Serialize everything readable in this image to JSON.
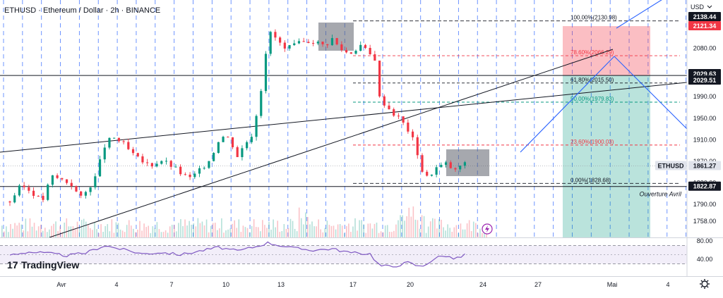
{
  "chart_data": {
    "type": "candlestick",
    "title": "ETHUSD · Ethereum / Dollar · 2h · BINANCE",
    "currency_label": "USD",
    "price_range": [
      1735,
      2150
    ],
    "price_ticks": [
      {
        "value": 2080.0,
        "label": "2080.00"
      },
      {
        "value": 1990.0,
        "label": "1990.00"
      },
      {
        "value": 1950.0,
        "label": "1950.00"
      },
      {
        "value": 1910.0,
        "label": "1910.00"
      },
      {
        "value": 1870.0,
        "label": "1870.00"
      },
      {
        "value": 1830.0,
        "label": "1830.00"
      },
      {
        "value": 1790.0,
        "label": "1790.00"
      },
      {
        "value": 1758.0,
        "label": "1758.00"
      }
    ],
    "price_tags": [
      {
        "value": 2138.44,
        "label": "2138.44",
        "bg": "#131722",
        "fg": "#ffffff"
      },
      {
        "value": 2121.34,
        "label": "2121.34",
        "bg": "#f23645",
        "fg": "#ffffff"
      },
      {
        "value": 2029.63,
        "label": "2029.63",
        "bg": "#131722",
        "fg": "#ffffff"
      },
      {
        "value": 2029.51,
        "label": "2029.51",
        "bg": "#131722",
        "fg": "#ffffff"
      },
      {
        "value": 1861.27,
        "label": "1861.27",
        "bg": "#e0e3eb",
        "fg": "#131722",
        "name": "ETHUSD"
      },
      {
        "value": 1822.87,
        "label": "1822.87",
        "bg": "#131722",
        "fg": "#ffffff"
      }
    ],
    "x_ticks": [
      {
        "day": 1,
        "label": "Avr"
      },
      {
        "day": 4,
        "label": "4"
      },
      {
        "day": 7,
        "label": "7"
      },
      {
        "day": 10,
        "label": "10"
      },
      {
        "day": 13,
        "label": "13"
      },
      {
        "day": 17,
        "label": "17"
      },
      {
        "day": 20,
        "label": "20"
      },
      {
        "day": 24,
        "label": "24"
      },
      {
        "day": 27,
        "label": "27"
      },
      {
        "day": 31,
        "label": "Mai"
      },
      {
        "day": 34,
        "label": "4"
      }
    ],
    "fib_levels": [
      {
        "ratio": "100.00%",
        "value": 2130.98,
        "label": "100.00%(2130.98)",
        "color": "#131722"
      },
      {
        "ratio": "78.60%",
        "value": 2066.29,
        "label": "78.60%(2066.29)",
        "color": "#f23645"
      },
      {
        "ratio": "61.80%",
        "value": 2015.5,
        "label": "61.80%(2015.50)",
        "color": "#131722"
      },
      {
        "ratio": "50.00%",
        "value": 1979.83,
        "label": "50.00%(1979.83)",
        "color": "#089981"
      },
      {
        "ratio": "23.60%",
        "value": 1900.03,
        "label": "23.60%(1900.03)",
        "color": "#f23645"
      },
      {
        "ratio": "0.00%",
        "value": 1828.68,
        "label": "0.00%(1828.68)",
        "color": "#131722"
      }
    ],
    "annotation": "Ouverture Avril",
    "ohlc_path": [
      {
        "day": 0.0,
        "price": 1795
      },
      {
        "day": 0.6,
        "price": 1825
      },
      {
        "day": 1.2,
        "price": 1812
      },
      {
        "day": 1.7,
        "price": 1795
      },
      {
        "day": 2.2,
        "price": 1842
      },
      {
        "day": 2.8,
        "price": 1835
      },
      {
        "day": 3.3,
        "price": 1826
      },
      {
        "day": 3.7,
        "price": 1800
      },
      {
        "day": 4.0,
        "price": 1812
      },
      {
        "day": 4.5,
        "price": 1840
      },
      {
        "day": 5.0,
        "price": 1898
      },
      {
        "day": 5.4,
        "price": 1915
      },
      {
        "day": 5.9,
        "price": 1905
      },
      {
        "day": 6.4,
        "price": 1885
      },
      {
        "day": 6.9,
        "price": 1870
      },
      {
        "day": 7.4,
        "price": 1862
      },
      {
        "day": 8.0,
        "price": 1872
      },
      {
        "day": 8.6,
        "price": 1860
      },
      {
        "day": 9.1,
        "price": 1845
      },
      {
        "day": 9.5,
        "price": 1838
      },
      {
        "day": 10.0,
        "price": 1852
      },
      {
        "day": 10.6,
        "price": 1876
      },
      {
        "day": 11.1,
        "price": 1918
      },
      {
        "day": 11.6,
        "price": 1912
      },
      {
        "day": 12.0,
        "price": 1880
      },
      {
        "day": 12.4,
        "price": 1902
      },
      {
        "day": 12.8,
        "price": 1922
      },
      {
        "day": 13.1,
        "price": 1975
      },
      {
        "day": 13.4,
        "price": 2035
      },
      {
        "day": 13.6,
        "price": 2112
      },
      {
        "day": 14.0,
        "price": 2100
      },
      {
        "day": 14.5,
        "price": 2078
      },
      {
        "day": 15.2,
        "price": 2088
      },
      {
        "day": 15.9,
        "price": 2095
      },
      {
        "day": 16.6,
        "price": 2085
      },
      {
        "day": 17.0,
        "price": 2098
      },
      {
        "day": 17.4,
        "price": 2080
      },
      {
        "day": 17.9,
        "price": 2070
      },
      {
        "day": 18.5,
        "price": 2086
      },
      {
        "day": 19.0,
        "price": 2068
      },
      {
        "day": 19.3,
        "price": 2060
      },
      {
        "day": 19.5,
        "price": 1988
      },
      {
        "day": 19.9,
        "price": 1972
      },
      {
        "day": 20.2,
        "price": 1960
      },
      {
        "day": 20.6,
        "price": 1948
      },
      {
        "day": 21.0,
        "price": 1928
      },
      {
        "day": 21.4,
        "price": 1900
      },
      {
        "day": 21.7,
        "price": 1855
      },
      {
        "day": 22.0,
        "price": 1840
      },
      {
        "day": 22.5,
        "price": 1858
      },
      {
        "day": 23.0,
        "price": 1865
      },
      {
        "day": 23.5,
        "price": 1852
      },
      {
        "day": 23.9,
        "price": 1868
      },
      {
        "day": 24.1,
        "price": 1861
      }
    ],
    "rsi": {
      "ticks": [
        {
          "value": 80,
          "label": "80.00"
        },
        {
          "value": 40,
          "label": "40.00"
        }
      ],
      "bands": [
        70,
        30
      ],
      "path": [
        {
          "day": 0.0,
          "value": 50
        },
        {
          "day": 1.0,
          "value": 56
        },
        {
          "day": 2.0,
          "value": 53
        },
        {
          "day": 3.0,
          "value": 48
        },
        {
          "day": 4.0,
          "value": 54
        },
        {
          "day": 5.0,
          "value": 70
        },
        {
          "day": 6.0,
          "value": 61
        },
        {
          "day": 7.0,
          "value": 52
        },
        {
          "day": 8.0,
          "value": 55
        },
        {
          "day": 9.0,
          "value": 50
        },
        {
          "day": 10.0,
          "value": 58
        },
        {
          "day": 11.0,
          "value": 66
        },
        {
          "day": 12.0,
          "value": 58
        },
        {
          "day": 13.0,
          "value": 68
        },
        {
          "day": 13.6,
          "value": 76
        },
        {
          "day": 15.0,
          "value": 64
        },
        {
          "day": 16.0,
          "value": 60
        },
        {
          "day": 17.0,
          "value": 63
        },
        {
          "day": 18.0,
          "value": 54
        },
        {
          "day": 19.0,
          "value": 52
        },
        {
          "day": 19.5,
          "value": 26
        },
        {
          "day": 20.2,
          "value": 24
        },
        {
          "day": 21.0,
          "value": 33
        },
        {
          "day": 21.7,
          "value": 23
        },
        {
          "day": 22.5,
          "value": 44
        },
        {
          "day": 23.0,
          "value": 48
        },
        {
          "day": 23.5,
          "value": 40
        },
        {
          "day": 24.0,
          "value": 50
        }
      ]
    },
    "colors": {
      "up": "#089981",
      "down": "#f23645",
      "rsi": "#7e57c2",
      "grid_dash": "#2962ff",
      "projection": "#2962ff",
      "trend": "#131722"
    }
  },
  "logo": {
    "text": "TradingView"
  },
  "toolbar": {
    "settings_icon": "gear-icon"
  }
}
